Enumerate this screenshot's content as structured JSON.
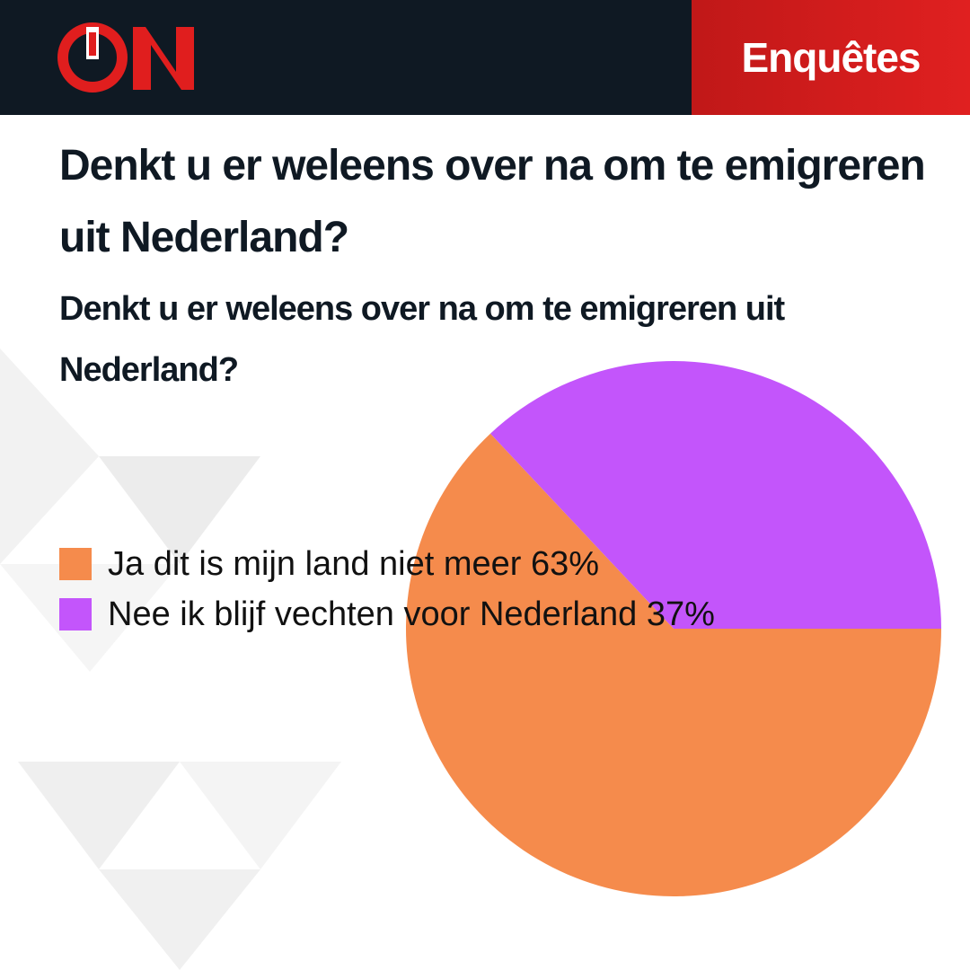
{
  "header": {
    "tag": "Enquêtes"
  },
  "chart_data": {
    "type": "pie",
    "title": "Denkt u er weleens over na om te emigreren uit Nederland?",
    "subtitle": "Denkt u er weleens over na om te emigreren uit Nederland?",
    "categories": [
      "Ja dit is mijn land niet meer",
      "Nee ik blijf vechten voor Nederland"
    ],
    "values": [
      63,
      37
    ],
    "value_labels": [
      "63%",
      "37%"
    ],
    "colors": [
      "#f58b4c",
      "#c355fb"
    ]
  }
}
